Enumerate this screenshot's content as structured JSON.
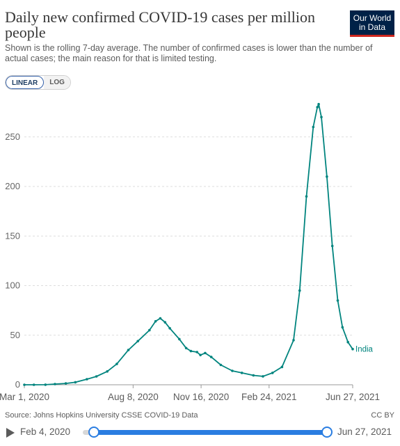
{
  "header": {
    "title": "Daily new confirmed COVID-19 cases per million people",
    "subtitle": "Shown is the rolling 7-day average. The number of confirmed cases is lower than the number of actual cases; the main reason for that is limited testing.",
    "logo_line1": "Our World",
    "logo_line2": "in Data"
  },
  "scale_toggle": {
    "linear_label": "LINEAR",
    "log_label": "LOG",
    "selected": "LINEAR"
  },
  "footer": {
    "source": "Source: Johns Hopkins University CSSE COVID-19 Data",
    "license": "CC BY"
  },
  "timeline": {
    "start_label": "Feb 4, 2020",
    "end_label": "Jun 27, 2021",
    "accent_color": "#2a7de1"
  },
  "chart_data": {
    "type": "line",
    "title": "Daily new confirmed COVID-19 cases per million people",
    "xlabel": "",
    "ylabel": "",
    "xlim": [
      "2020-03-01",
      "2021-06-27"
    ],
    "ylim": [
      0,
      285
    ],
    "y_ticks": [
      0,
      50,
      100,
      150,
      200,
      250
    ],
    "x_ticks": [
      "Mar 1, 2020",
      "Aug 8, 2020",
      "Nov 16, 2020",
      "Feb 24, 2021",
      "Jun 27, 2021"
    ],
    "x_tick_dates": [
      "2020-03-01",
      "2020-08-08",
      "2020-11-16",
      "2021-02-24",
      "2021-06-27"
    ],
    "grid": "horizontal dashed",
    "series": [
      {
        "name": "India",
        "color": "#00847e",
        "points": [
          [
            "2020-03-01",
            0.0
          ],
          [
            "2020-03-15",
            0.0
          ],
          [
            "2020-04-01",
            0.1
          ],
          [
            "2020-04-15",
            0.7
          ],
          [
            "2020-05-01",
            1.3
          ],
          [
            "2020-05-15",
            2.5
          ],
          [
            "2020-06-01",
            5.6
          ],
          [
            "2020-06-15",
            8.4
          ],
          [
            "2020-07-01",
            13.5
          ],
          [
            "2020-07-15",
            21.0
          ],
          [
            "2020-08-01",
            35.0
          ],
          [
            "2020-08-15",
            44.0
          ],
          [
            "2020-09-01",
            55.0
          ],
          [
            "2020-09-10",
            64.0
          ],
          [
            "2020-09-17",
            67.0
          ],
          [
            "2020-09-24",
            63.0
          ],
          [
            "2020-10-01",
            57.0
          ],
          [
            "2020-10-15",
            46.0
          ],
          [
            "2020-10-25",
            37.0
          ],
          [
            "2020-11-01",
            34.0
          ],
          [
            "2020-11-10",
            33.0
          ],
          [
            "2020-11-15",
            30.0
          ],
          [
            "2020-11-22",
            32.0
          ],
          [
            "2020-12-01",
            28.0
          ],
          [
            "2020-12-15",
            20.0
          ],
          [
            "2021-01-01",
            14.0
          ],
          [
            "2021-01-15",
            12.0
          ],
          [
            "2021-02-01",
            9.5
          ],
          [
            "2021-02-15",
            8.5
          ],
          [
            "2021-03-01",
            12.0
          ],
          [
            "2021-03-15",
            18.0
          ],
          [
            "2021-04-01",
            45.0
          ],
          [
            "2021-04-10",
            95.0
          ],
          [
            "2021-04-20",
            190.0
          ],
          [
            "2021-04-30",
            260.0
          ],
          [
            "2021-05-06",
            280.0
          ],
          [
            "2021-05-08",
            283.0
          ],
          [
            "2021-05-12",
            270.0
          ],
          [
            "2021-05-20",
            210.0
          ],
          [
            "2021-05-28",
            140.0
          ],
          [
            "2021-06-05",
            85.0
          ],
          [
            "2021-06-12",
            58.0
          ],
          [
            "2021-06-20",
            43.0
          ],
          [
            "2021-06-27",
            36.0
          ]
        ]
      }
    ],
    "end_label": "India"
  }
}
